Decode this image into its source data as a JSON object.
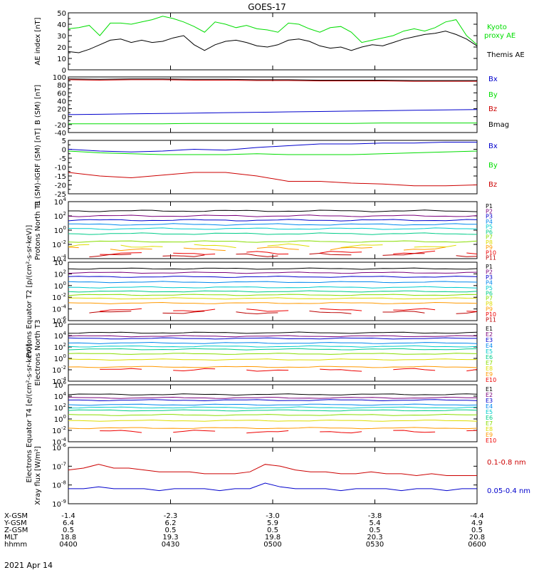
{
  "title": "GOES-17",
  "date_label": "2021 Apr 14",
  "footer": {
    "row_labels": [
      "X-GSM",
      "Y-GSM",
      "Z-GSM",
      "MLT",
      "hhmm"
    ],
    "columns": [
      {
        "values": [
          "-1.4",
          "6.4",
          "0.5",
          "18.8",
          "0400"
        ]
      },
      {
        "values": [
          "-2.3",
          "6.2",
          "0.5",
          "19.3",
          "0430"
        ]
      },
      {
        "values": [
          "-3.0",
          "5.9",
          "0.5",
          "19.8",
          "0500"
        ]
      },
      {
        "values": [
          "-3.8",
          "5.4",
          "0.5",
          "20.3",
          "0530"
        ]
      },
      {
        "values": [
          "-4.4",
          "4.9",
          "0.5",
          "20.8",
          "0600"
        ]
      }
    ]
  },
  "colors": {
    "black": "#000000",
    "green": "#00dd00",
    "blue": "#0000cc",
    "red": "#cc0000",
    "p": [
      "#000000",
      "#7b007b",
      "#0000cc",
      "#0088ee",
      "#00cccc",
      "#00cc88",
      "#88dd00",
      "#dddd00",
      "#ff9900",
      "#ee0000",
      "#bb0000"
    ],
    "e": [
      "#000000",
      "#7b007b",
      "#0000cc",
      "#0088ee",
      "#00cccc",
      "#00cc88",
      "#88dd00",
      "#dddd00",
      "#ff9900",
      "#ee0000",
      "#bb0000"
    ]
  },
  "chart_data": [
    {
      "type": "line",
      "ylabel": "AE index [nT]",
      "ylim": [
        0,
        50
      ],
      "y_ticks": [
        "0",
        "10",
        "20",
        "30",
        "40",
        "50"
      ],
      "x_range": [
        "0400",
        "0600"
      ],
      "series": [
        {
          "name": "Kyoto proxy AE",
          "legend_lines": [
            "Kyoto",
            "proxy AE"
          ],
          "color_key": "green",
          "values": [
            36,
            37,
            39,
            30,
            41,
            41,
            40,
            42,
            44,
            47,
            45,
            42,
            38,
            33,
            42,
            40,
            37,
            39,
            36,
            35,
            33,
            41,
            40,
            36,
            33,
            37,
            38,
            33,
            24,
            26,
            28,
            30,
            34,
            36,
            34,
            37,
            42,
            44,
            30,
            22
          ]
        },
        {
          "name": "Themis AE",
          "legend_lines": [
            "Themis AE"
          ],
          "color_key": "black",
          "values": [
            16,
            15,
            18,
            22,
            26,
            27,
            24,
            26,
            24,
            25,
            28,
            30,
            22,
            17,
            22,
            25,
            26,
            24,
            21,
            20,
            22,
            26,
            27,
            25,
            21,
            19,
            20,
            17,
            20,
            22,
            21,
            24,
            27,
            29,
            31,
            32,
            34,
            31,
            27,
            21
          ]
        }
      ]
    },
    {
      "type": "line",
      "ylabel": "B (SM) [nT]",
      "ylim": [
        -40,
        100
      ],
      "y_ticks": [
        "-40",
        "-20",
        "0",
        "20",
        "40",
        "60",
        "80",
        "100"
      ],
      "series": [
        {
          "name": "Bx",
          "color_key": "blue",
          "values": [
            5,
            6,
            7,
            8,
            9,
            10,
            11,
            12,
            13,
            14,
            15,
            16,
            17,
            18
          ]
        },
        {
          "name": "By",
          "color_key": "green",
          "values": [
            -18,
            -18,
            -18,
            -18,
            -17,
            -17,
            -17,
            -17,
            -17,
            -17,
            -16,
            -16,
            -16,
            -16
          ]
        },
        {
          "name": "Bz",
          "color_key": "red",
          "values": [
            93,
            92,
            93,
            93,
            92,
            92,
            91,
            91,
            90,
            90,
            90,
            89,
            89,
            89
          ]
        },
        {
          "name": "Bmag",
          "color_key": "black",
          "values": [
            95,
            94,
            95,
            95,
            94,
            94,
            93,
            93,
            92,
            92,
            92,
            91,
            91,
            91
          ]
        }
      ]
    },
    {
      "type": "line",
      "ylabel": "B (SM)-IGRF (SM) [nT]",
      "ylim": [
        -25,
        5
      ],
      "y_ticks": [
        "-25",
        "-20",
        "-15",
        "-10",
        "-5",
        "0",
        "5"
      ],
      "series": [
        {
          "name": "Bx",
          "color_key": "blue",
          "values": [
            0,
            -1,
            -1.5,
            -1,
            0,
            -0.5,
            1,
            2,
            3,
            3,
            3.5,
            3.5,
            4,
            4
          ]
        },
        {
          "name": "By",
          "color_key": "green",
          "values": [
            -1,
            -2,
            -2.5,
            -3,
            -3,
            -3,
            -2.5,
            -3,
            -3,
            -3,
            -2.5,
            -2,
            -1.5,
            -1
          ]
        },
        {
          "name": "Bz",
          "color_key": "red",
          "values": [
            -13,
            -15,
            -16,
            -14.5,
            -13,
            -13,
            -15,
            -18,
            -18,
            -19,
            -19.5,
            -20.5,
            -20.5,
            -20
          ]
        }
      ]
    },
    {
      "type": "line",
      "ylabel": "Protons North T1",
      "yscale": "log",
      "ylim": [
        -4,
        4
      ],
      "y_ticks": [
        "10^-4",
        "10^-2",
        "10^0",
        "10^2",
        "10^4"
      ],
      "series": [
        {
          "name": "P1",
          "level": 2.7
        },
        {
          "name": "P2",
          "level": 2.0
        },
        {
          "name": "P3",
          "level": 1.4
        },
        {
          "name": "P4",
          "level": 0.8
        },
        {
          "name": "P5",
          "level": 0.2
        },
        {
          "name": "P6",
          "level": -0.5
        },
        {
          "name": "P7",
          "level": -1.6
        },
        {
          "name": "P8",
          "level": -2.2
        },
        {
          "name": "P9",
          "level": -2.6
        },
        {
          "name": "P10",
          "level": -3.2
        },
        {
          "name": "P11",
          "level": -3.5
        }
      ]
    },
    {
      "type": "line",
      "ylabel": "Protons Equator T2 [p/(cm²-s-sr-keV)]",
      "yscale": "log",
      "ylim": [
        -6,
        4
      ],
      "y_ticks": [
        "10^-6",
        "10^-4",
        "10^-2",
        "10^0",
        "10^2",
        "10^4"
      ],
      "series": [
        {
          "name": "P1",
          "level": 2.9
        },
        {
          "name": "P2",
          "level": 2.2
        },
        {
          "name": "P3",
          "level": 1.5
        },
        {
          "name": "P4",
          "level": 0.6
        },
        {
          "name": "P5",
          "level": -0.3
        },
        {
          "name": "P6",
          "level": -1.0
        },
        {
          "name": "P7",
          "level": -1.6
        },
        {
          "name": "P8",
          "level": -2.2
        },
        {
          "name": "P9",
          "level": -3.0
        },
        {
          "name": "P10",
          "level": -4.2
        },
        {
          "name": "P11",
          "level": -4.6
        }
      ]
    },
    {
      "type": "line",
      "ylabel": "Electrons North T3",
      "yscale": "log",
      "ylim": [
        -4,
        6
      ],
      "y_ticks": [
        "10^-4",
        "10^-2",
        "10^0",
        "10^2",
        "10^4",
        "10^6"
      ],
      "series": [
        {
          "name": "E1",
          "level": 4.5
        },
        {
          "name": "E2",
          "level": 3.9
        },
        {
          "name": "E3",
          "level": 3.5
        },
        {
          "name": "E4",
          "level": 2.7
        },
        {
          "name": "E5",
          "level": 2.1
        },
        {
          "name": "E6",
          "level": 1.6
        },
        {
          "name": "E7",
          "level": 0.8
        },
        {
          "name": "E8",
          "level": -0.2
        },
        {
          "name": "E9",
          "level": -1.5
        },
        {
          "name": "E10",
          "level": -2.0
        }
      ]
    },
    {
      "type": "line",
      "ylabel": "Electrons Equator T4 [e/(cm²-s-sr-keV)]",
      "yscale": "log",
      "ylim": [
        -4,
        6
      ],
      "y_ticks": [
        "10^-4",
        "10^-2",
        "10^0",
        "10^2",
        "10^4",
        "10^6"
      ],
      "series": [
        {
          "name": "E1",
          "level": 4.3
        },
        {
          "name": "E2",
          "level": 3.7
        },
        {
          "name": "E3",
          "level": 3.3
        },
        {
          "name": "E4",
          "level": 2.5
        },
        {
          "name": "E5",
          "level": 2.0
        },
        {
          "name": "E6",
          "level": 1.5
        },
        {
          "name": "E7",
          "level": 0.7
        },
        {
          "name": "E8",
          "level": -0.3
        },
        {
          "name": "E9",
          "level": -1.6
        },
        {
          "name": "E10",
          "level": -2.2
        }
      ]
    },
    {
      "type": "line",
      "ylabel": "Xray flux [W/m²]",
      "yscale": "log",
      "ylim": [
        -9,
        -6
      ],
      "y_ticks": [
        "10^-9",
        "10^-8",
        "10^-7",
        "10^-6"
      ],
      "series": [
        {
          "name": "0.1-0.8 nm",
          "color_key": "red",
          "values": [
            -7.2,
            -7.1,
            -6.9,
            -7.1,
            -7.1,
            -7.2,
            -7.3,
            -7.3,
            -7.3,
            -7.4,
            -7.4,
            -7.4,
            -7.3,
            -6.9,
            -7.0,
            -7.2,
            -7.3,
            -7.3,
            -7.4,
            -7.4,
            -7.3,
            -7.4,
            -7.4,
            -7.5,
            -7.4,
            -7.5,
            -7.5,
            -7.5
          ]
        },
        {
          "name": "0.05-0.4 nm",
          "color_key": "blue",
          "values": [
            -8.2,
            -8.2,
            -8.1,
            -8.2,
            -8.2,
            -8.2,
            -8.3,
            -8.2,
            -8.2,
            -8.2,
            -8.3,
            -8.2,
            -8.2,
            -7.9,
            -8.1,
            -8.2,
            -8.2,
            -8.2,
            -8.3,
            -8.2,
            -8.2,
            -8.2,
            -8.3,
            -8.2,
            -8.2,
            -8.3,
            -8.2,
            -8.2
          ]
        }
      ]
    }
  ]
}
